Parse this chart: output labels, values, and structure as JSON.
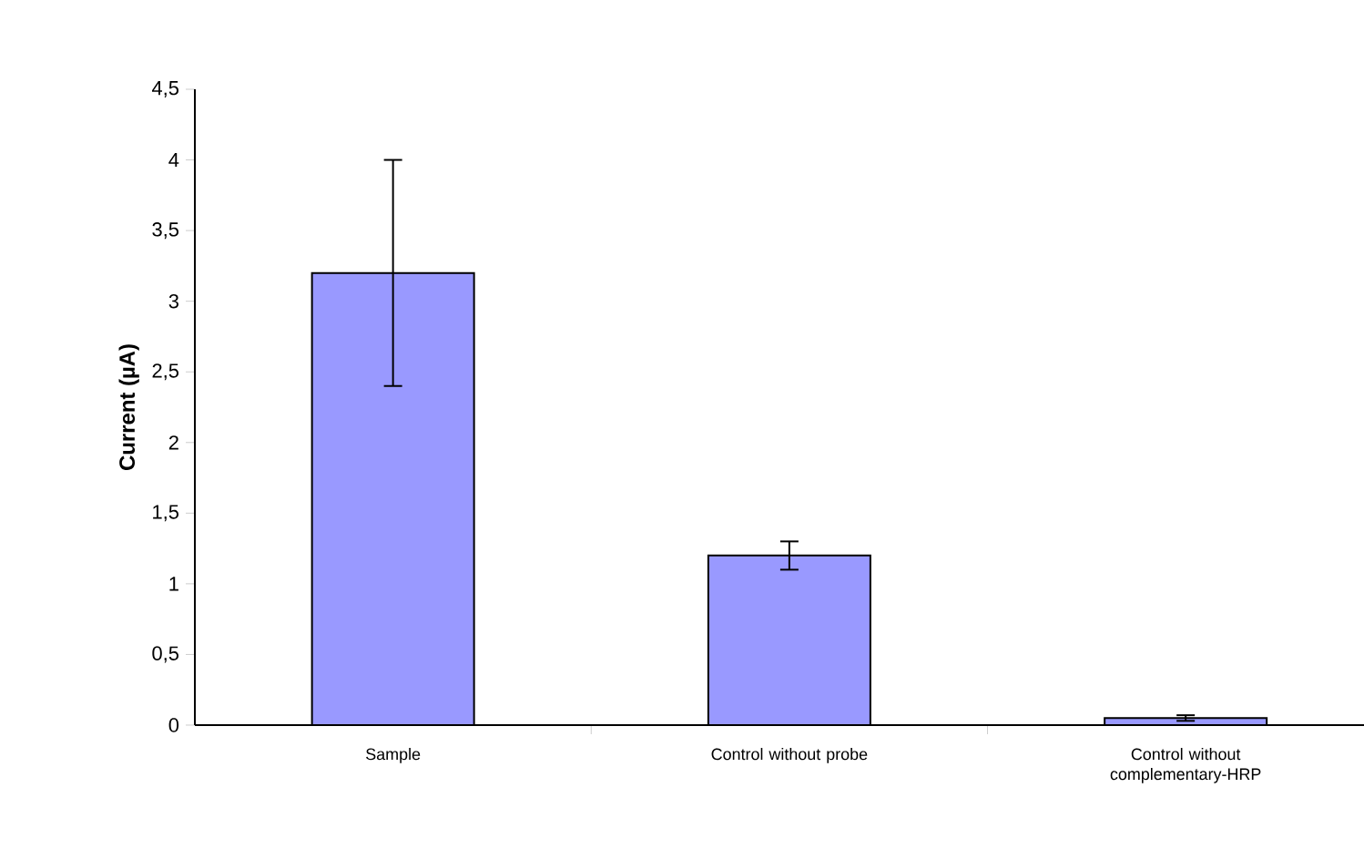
{
  "chart_data": {
    "type": "bar",
    "ylabel": "Current (µA)",
    "categories": [
      "Sample",
      "Control without probe",
      "Control without complementary-HRP"
    ],
    "values": [
      3.2,
      1.2,
      0.05
    ],
    "errors": [
      0.8,
      0.1,
      0.02
    ],
    "color": "#9999ff",
    "ylim": [
      0,
      4.5
    ],
    "yticks": [
      {
        "value": 0,
        "label": "0"
      },
      {
        "value": 0.5,
        "label": "0,5"
      },
      {
        "value": 1,
        "label": "1"
      },
      {
        "value": 1.5,
        "label": "1,5"
      },
      {
        "value": 2,
        "label": "2"
      },
      {
        "value": 2.5,
        "label": "2,5"
      },
      {
        "value": 3,
        "label": "3"
      },
      {
        "value": 3.5,
        "label": "3,5"
      },
      {
        "value": 4,
        "label": "4"
      },
      {
        "value": 4.5,
        "label": "4,5"
      }
    ]
  }
}
